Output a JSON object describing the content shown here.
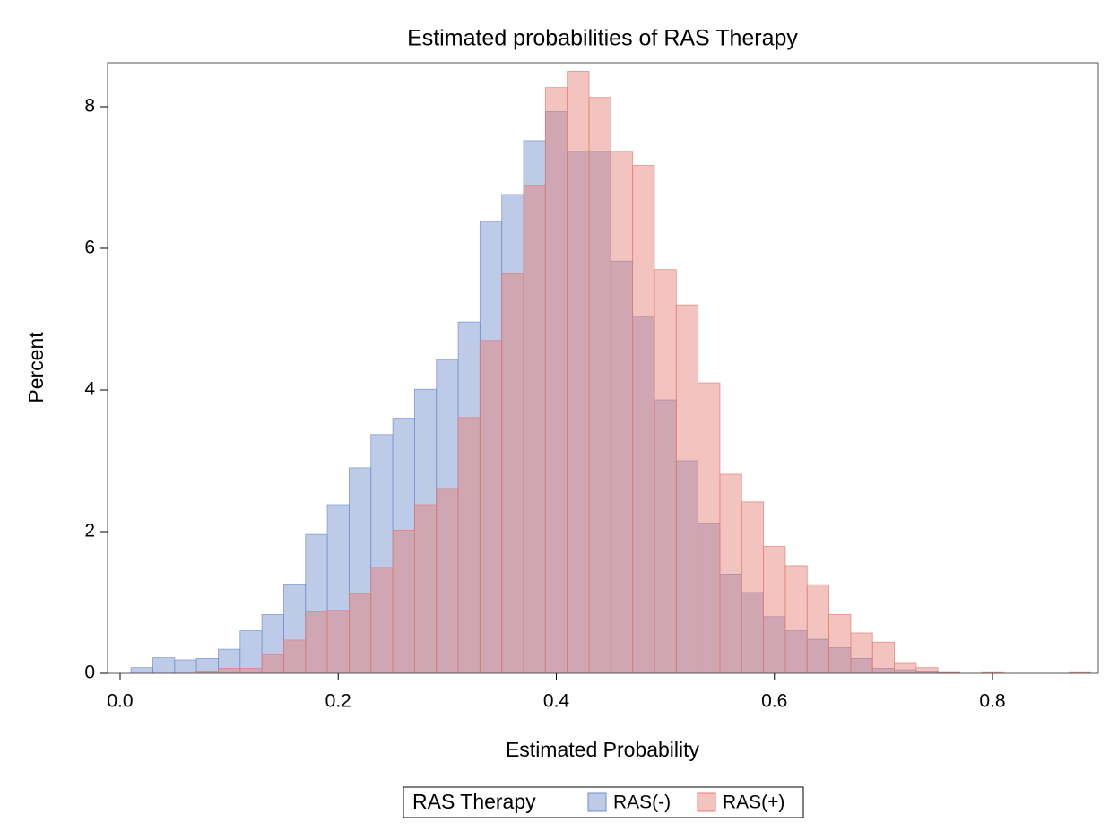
{
  "chart_data": {
    "type": "histogram",
    "title": "Estimated probabilities of RAS Therapy",
    "x_label": "Estimated Probability",
    "y_label": "Percent",
    "legend_title": "RAS Therapy",
    "bins": [
      0.01,
      0.03,
      0.05,
      0.07,
      0.09,
      0.11,
      0.13,
      0.15,
      0.17,
      0.19,
      0.21,
      0.23,
      0.25,
      0.27,
      0.29,
      0.31,
      0.33,
      0.35,
      0.37,
      0.39,
      0.41,
      0.43,
      0.45,
      0.47,
      0.49,
      0.51,
      0.53,
      0.55,
      0.57,
      0.59,
      0.61,
      0.63,
      0.65,
      0.67,
      0.69,
      0.71,
      0.73,
      0.75,
      0.77,
      0.79,
      0.81,
      0.83,
      0.85,
      0.87,
      0.89
    ],
    "series": [
      {
        "name": "RAS(-)",
        "color": "#6f8ccc",
        "values": [
          0.08,
          0.22,
          0.19,
          0.21,
          0.34,
          0.6,
          0.83,
          1.26,
          1.96,
          2.38,
          2.9,
          3.37,
          3.6,
          4.01,
          4.43,
          4.96,
          6.38,
          6.76,
          7.52,
          7.93,
          7.37,
          7.37,
          5.82,
          5.04,
          3.86,
          3.0,
          2.12,
          1.4,
          1.14,
          0.8,
          0.6,
          0.48,
          0.36,
          0.21,
          0.07,
          0.05,
          0.02,
          0.01,
          0,
          0,
          0,
          0,
          0,
          0
        ]
      },
      {
        "name": "RAS(+)",
        "color": "#e57a70",
        "values": [
          0,
          0,
          0,
          0.02,
          0.07,
          0.07,
          0.26,
          0.47,
          0.87,
          0.89,
          1.12,
          1.5,
          2.02,
          2.38,
          2.61,
          3.61,
          4.7,
          5.64,
          6.89,
          8.27,
          8.5,
          8.13,
          7.37,
          7.17,
          5.7,
          5.2,
          4.1,
          2.81,
          2.42,
          1.79,
          1.52,
          1.25,
          0.83,
          0.57,
          0.44,
          0.14,
          0.08,
          0.01,
          0,
          0.01,
          0,
          0,
          0,
          0.01
        ]
      }
    ],
    "xlim": [
      -0.0115,
      0.897
    ],
    "ylim": [
      0,
      8.62
    ],
    "xticks": [
      {
        "value": 0,
        "label": "0.0"
      },
      0.2,
      0.4,
      0.6,
      0.8
    ],
    "yticks": [
      0,
      2,
      4,
      6,
      8
    ],
    "opacity": 0.45
  }
}
